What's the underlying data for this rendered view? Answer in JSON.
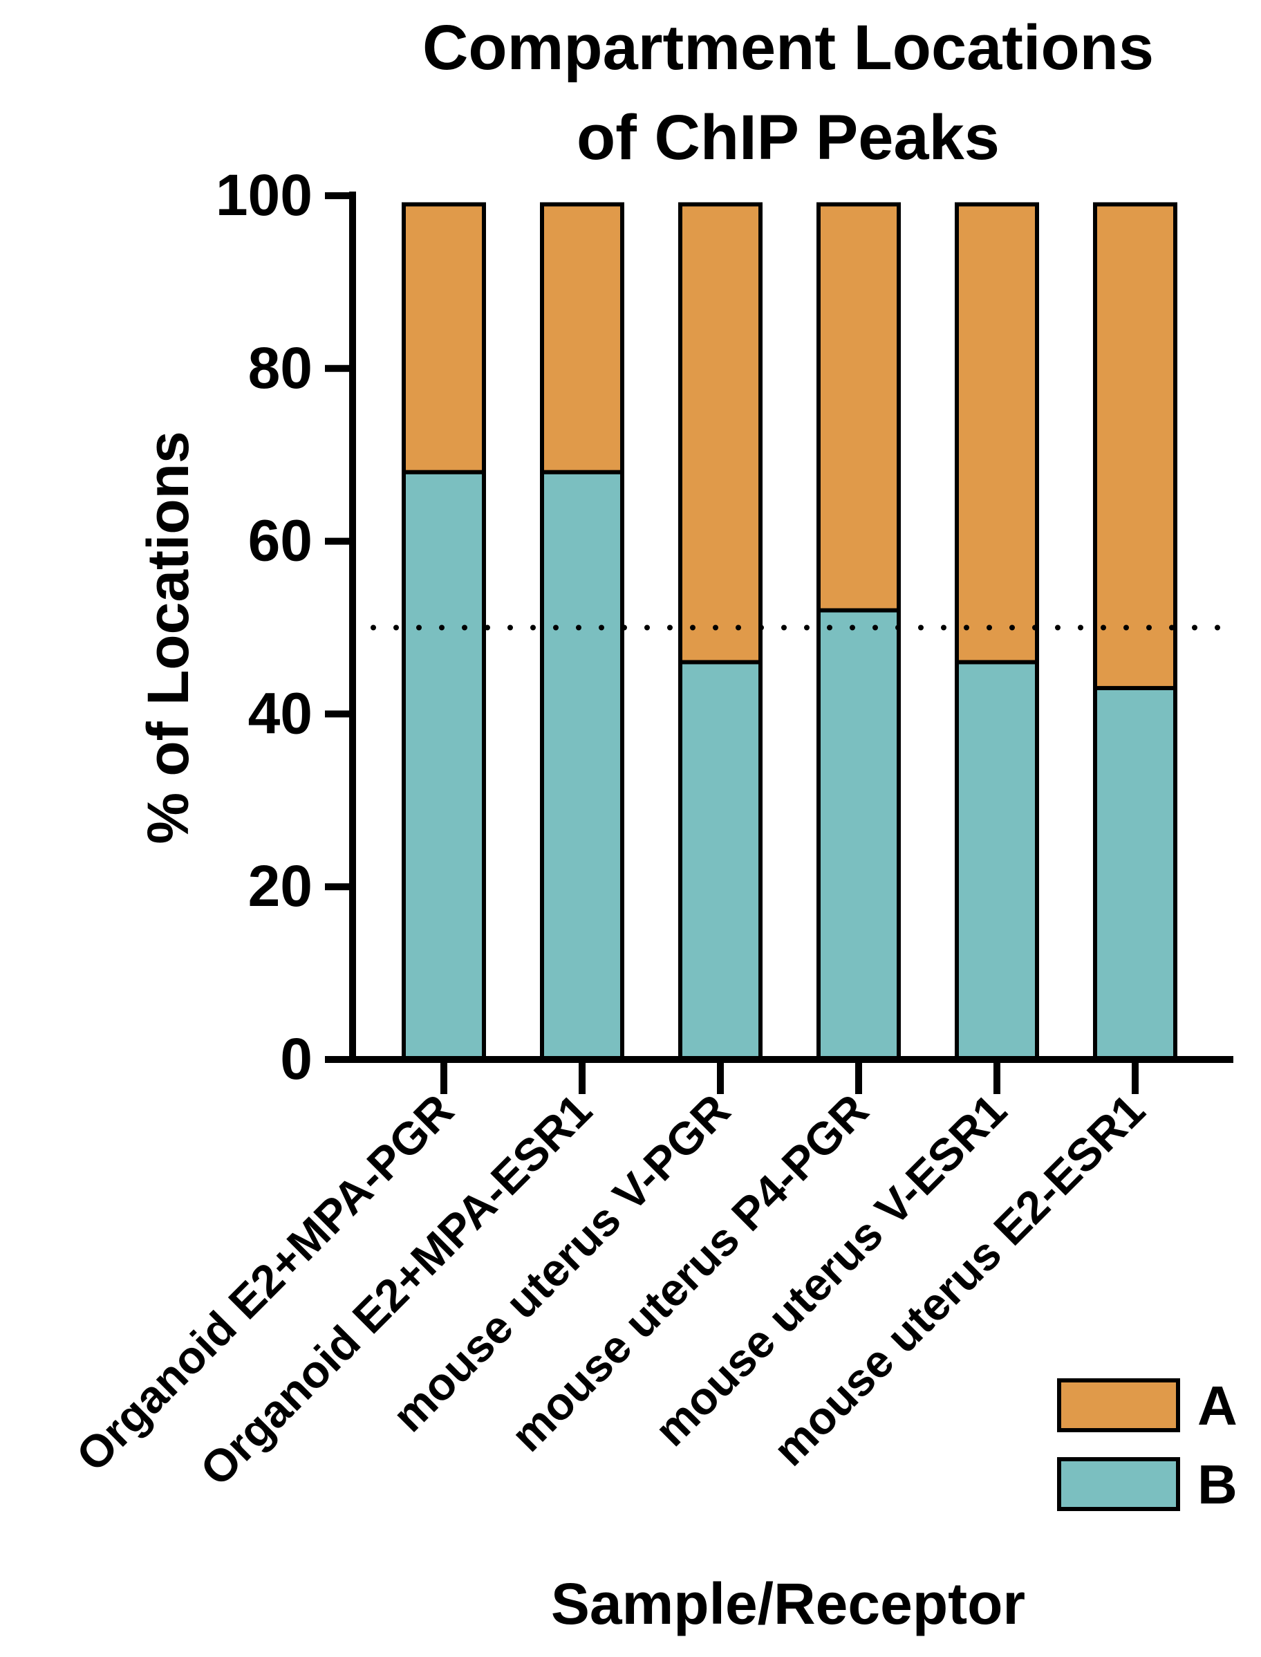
{
  "chart_data": {
    "type": "bar",
    "stacked": true,
    "title_lines": [
      "Compartment Locations",
      "of ChIP Peaks"
    ],
    "xlabel": "Sample/Receptor",
    "ylabel": "% of Locations",
    "ylim": [
      0,
      100
    ],
    "yticks": [
      "0",
      "20",
      "40",
      "60",
      "80",
      "100"
    ],
    "categories": [
      "Organoid E2+MPA-PGR",
      "Organoid E2+MPA-ESR1",
      "mouse uterus V-PGR",
      "mouse uterus P4-PGR",
      "mouse uterus V-ESR1",
      "mouse uterus E2-ESR1"
    ],
    "series": [
      {
        "name": "B",
        "color": "#7bbfc0",
        "values": [
          68,
          68,
          46,
          52,
          46,
          43
        ]
      },
      {
        "name": "A",
        "color": "#e09a4a",
        "values": [
          31,
          31,
          53,
          47,
          53,
          56
        ]
      }
    ],
    "reference_line": {
      "y": 50,
      "style": "dotted"
    },
    "grid": false,
    "legend": {
      "position": "bottom-right",
      "order": [
        "A",
        "B"
      ]
    }
  }
}
